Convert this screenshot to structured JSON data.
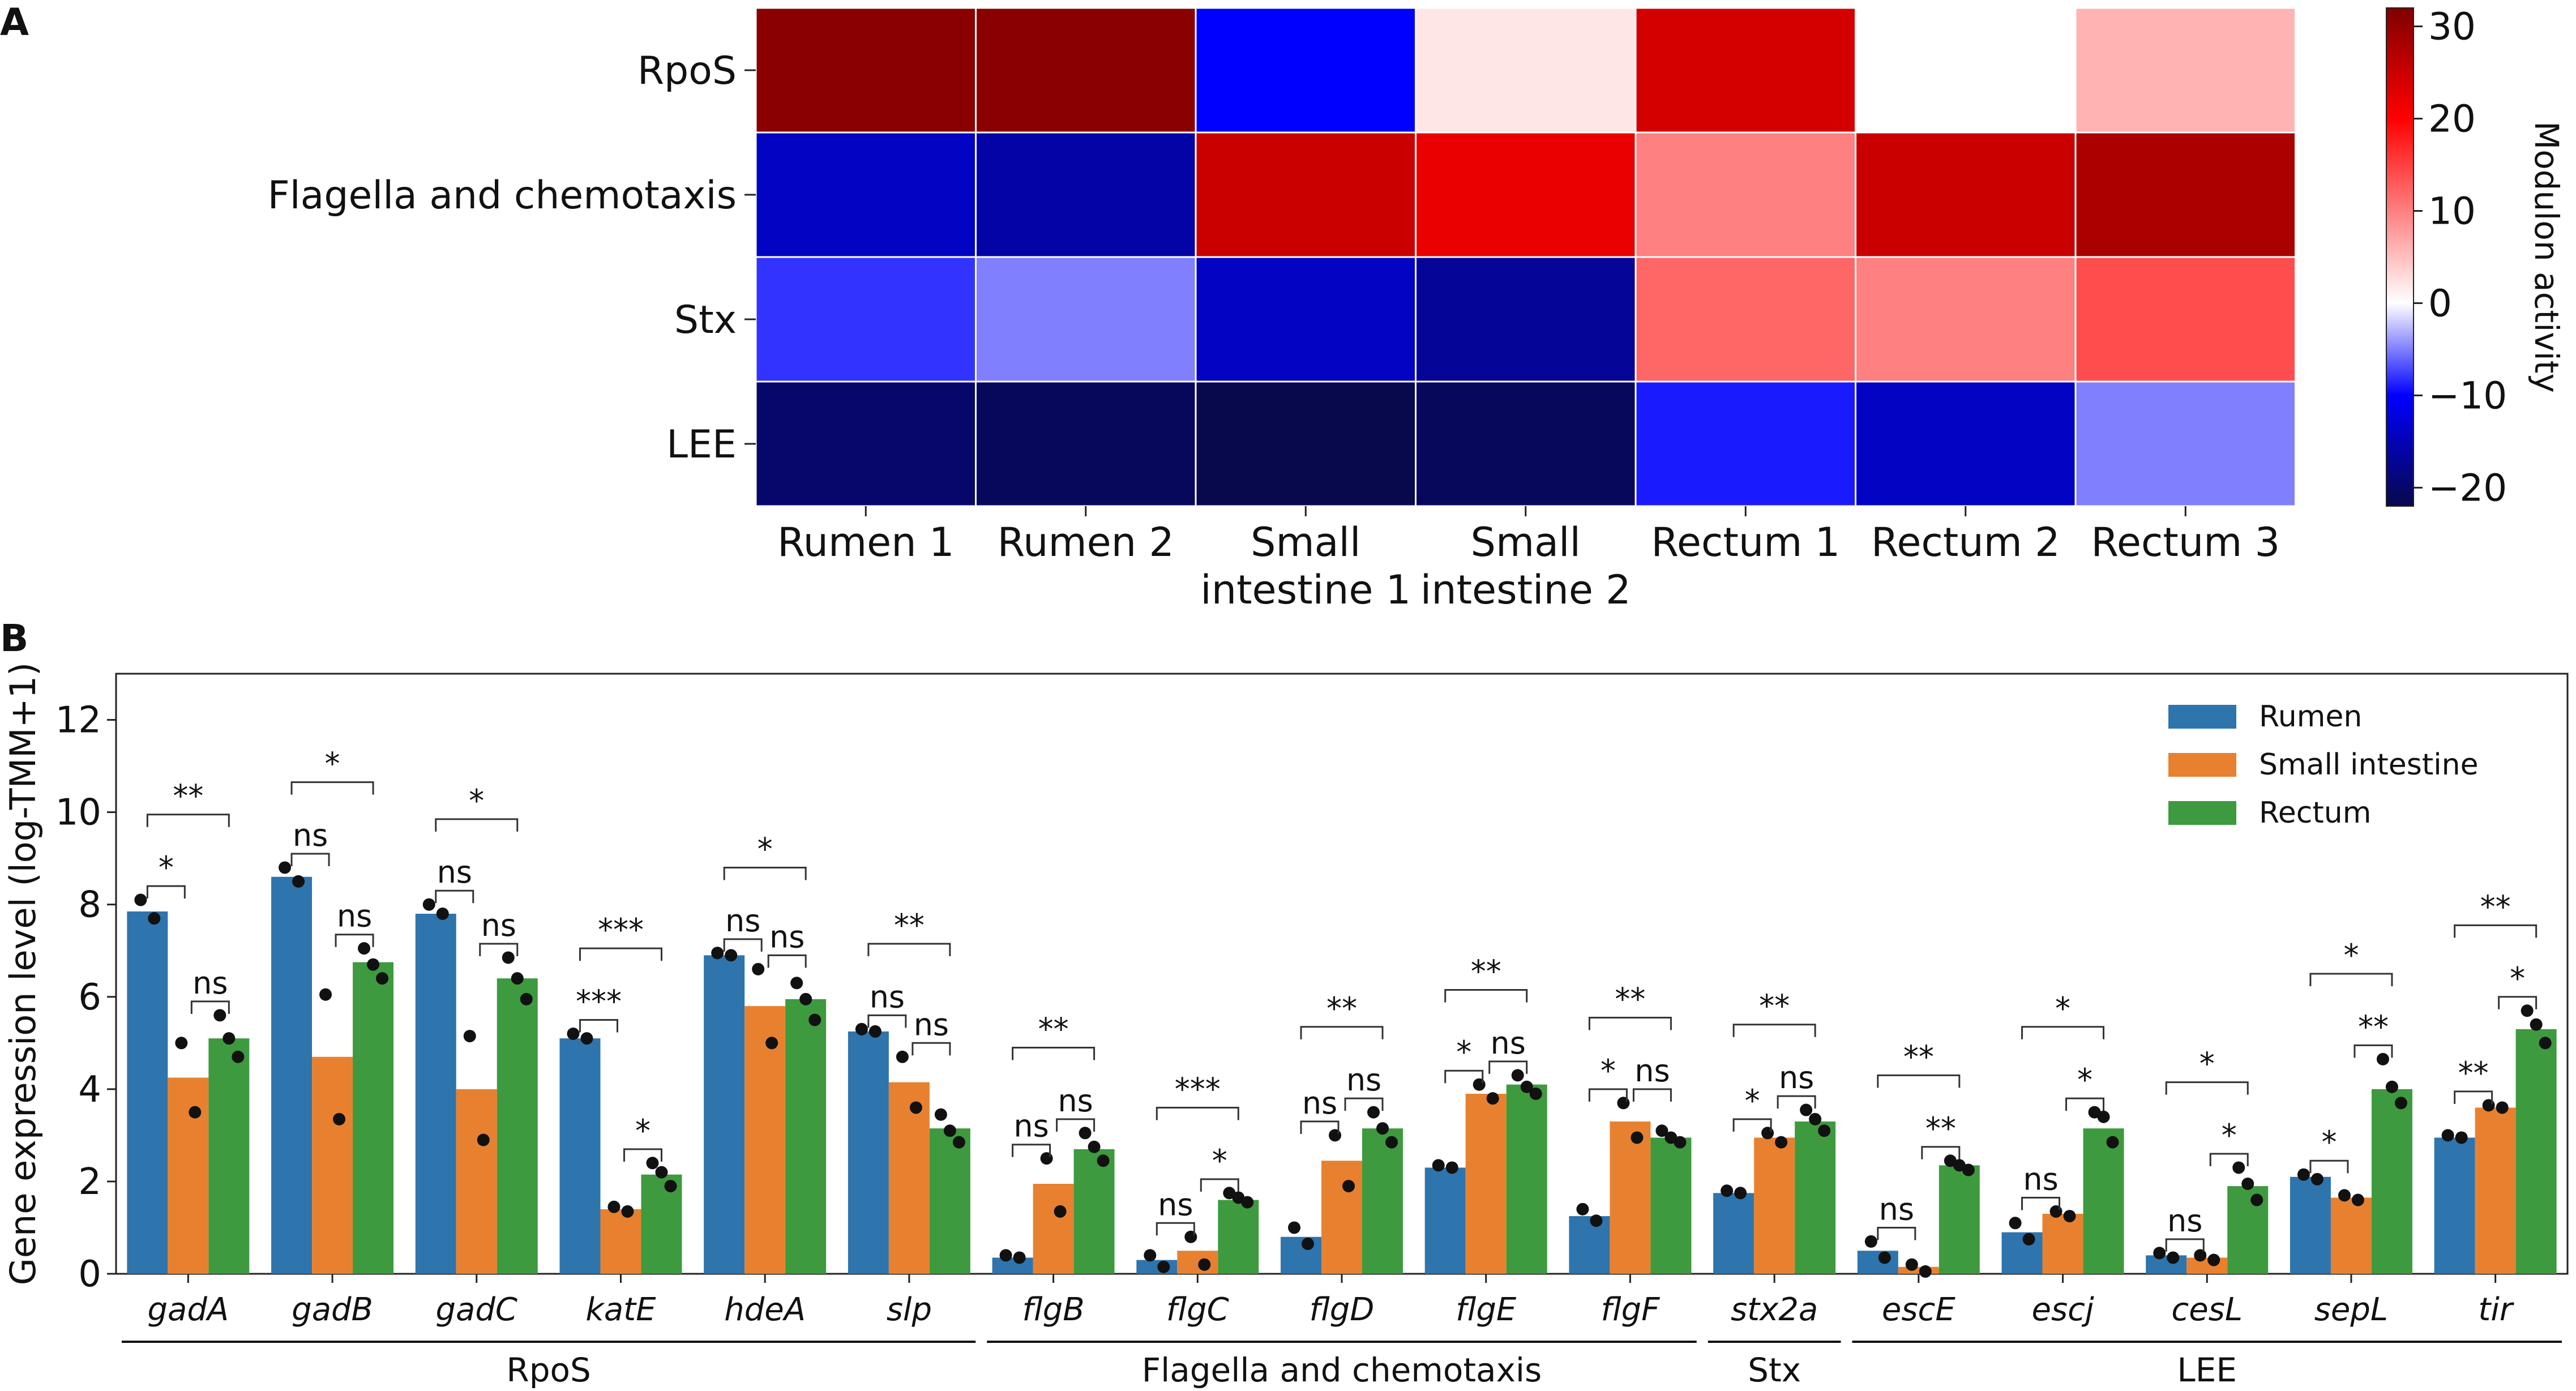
{
  "panel_a_label": "A",
  "panel_b_label": "B",
  "chart_data": [
    {
      "type": "heatmap",
      "panel": "A",
      "rows": [
        "RpoS",
        "Flagella and chemotaxis",
        "Stx",
        "LEE"
      ],
      "columns": [
        "Rumen 1",
        "Rumen 2",
        "Small intestine 1",
        "Small intestine 2",
        "Rectum 1",
        "Rectum 2",
        "Rectum 3"
      ],
      "column_labels": [
        [
          "Rumen 1"
        ],
        [
          "Rumen 2"
        ],
        [
          "Small",
          "intestine 1"
        ],
        [
          "Small",
          "intestine 2"
        ],
        [
          "Rectum 1"
        ],
        [
          "Rectum 2"
        ],
        [
          "Rectum 3"
        ]
      ],
      "values": [
        [
          31,
          31,
          -10,
          2,
          24,
          0,
          6
        ],
        [
          -14,
          -16,
          25,
          22,
          10,
          25,
          28
        ],
        [
          -8,
          -5,
          -14,
          -17,
          12,
          10,
          14
        ],
        [
          -20,
          -21,
          -22,
          -21,
          -9,
          -14,
          -5
        ]
      ],
      "colorbar": {
        "label": "Modulon activity",
        "vmin": -22,
        "vmax": 32,
        "ticks": [
          30,
          20,
          10,
          0,
          -10,
          -20
        ],
        "tick_labels": [
          "30",
          "20",
          "10",
          "0",
          "−10",
          "−20"
        ],
        "colors": [
          "#08084d",
          "#0000ff",
          "#ffffff",
          "#ff0000",
          "#7f0000"
        ]
      }
    },
    {
      "type": "bar",
      "panel": "B",
      "ylabel": "Gene expression level (log-TMM+1)",
      "ylim": [
        0,
        13
      ],
      "yticks": [
        0,
        2,
        4,
        6,
        8,
        10,
        12
      ],
      "categories": [
        "gadA",
        "gadB",
        "gadC",
        "katE",
        "hdeA",
        "slp",
        "flgB",
        "flgC",
        "flgD",
        "flgE",
        "flgF",
        "stx2a",
        "escE",
        "escj",
        "cesL",
        "sepL",
        "tir"
      ],
      "series": [
        {
          "name": "Rumen",
          "color": "#2e74ad",
          "values": [
            7.85,
            8.6,
            7.8,
            5.1,
            6.9,
            5.25,
            0.35,
            0.3,
            0.8,
            2.3,
            1.25,
            1.75,
            0.5,
            0.9,
            0.4,
            2.1,
            2.95
          ]
        },
        {
          "name": "Small intestine",
          "color": "#e8812f",
          "values": [
            4.25,
            4.7,
            4.0,
            1.4,
            5.8,
            4.15,
            1.95,
            0.5,
            2.45,
            3.9,
            3.3,
            2.95,
            0.15,
            1.3,
            0.35,
            1.65,
            3.6
          ]
        },
        {
          "name": "Rectum",
          "color": "#3e9a3e",
          "values": [
            5.1,
            6.75,
            6.4,
            2.15,
            5.95,
            3.15,
            2.7,
            1.6,
            3.15,
            4.1,
            2.95,
            3.3,
            2.35,
            3.15,
            1.9,
            4.0,
            5.3
          ]
        }
      ],
      "points": [
        [
          [
            8.1,
            7.7
          ],
          [
            8.8,
            8.5
          ],
          [
            8.0,
            7.8
          ],
          [
            5.2,
            5.1
          ],
          [
            6.95,
            6.9
          ],
          [
            5.3,
            5.25
          ],
          [
            0.4,
            0.35
          ],
          [
            0.4,
            0.15
          ],
          [
            1.0,
            0.65
          ],
          [
            2.35,
            2.3
          ],
          [
            1.4,
            1.15
          ],
          [
            1.8,
            1.75
          ],
          [
            0.7,
            0.35
          ],
          [
            1.1,
            0.75
          ],
          [
            0.45,
            0.35
          ],
          [
            2.15,
            2.05
          ],
          [
            3.0,
            2.95
          ]
        ],
        [
          [
            5.0,
            3.5
          ],
          [
            6.05,
            3.35
          ],
          [
            5.15,
            2.9
          ],
          [
            1.45,
            1.35
          ],
          [
            6.6,
            5.0
          ],
          [
            4.7,
            3.6
          ],
          [
            2.5,
            1.35
          ],
          [
            0.8,
            0.2
          ],
          [
            3.0,
            1.9
          ],
          [
            4.1,
            3.8
          ],
          [
            3.7,
            2.95
          ],
          [
            3.05,
            2.85
          ],
          [
            0.2,
            0.05
          ],
          [
            1.35,
            1.25
          ],
          [
            0.4,
            0.3
          ],
          [
            1.7,
            1.6
          ],
          [
            3.65,
            3.6
          ]
        ],
        [
          [
            5.6,
            5.1,
            4.7
          ],
          [
            7.05,
            6.7,
            6.4
          ],
          [
            6.85,
            6.4,
            5.95
          ],
          [
            2.4,
            2.2,
            1.9
          ],
          [
            6.3,
            5.95,
            5.5
          ],
          [
            3.45,
            3.1,
            2.85
          ],
          [
            3.05,
            2.75,
            2.45
          ],
          [
            1.75,
            1.65,
            1.55
          ],
          [
            3.5,
            3.15,
            2.85
          ],
          [
            4.3,
            4.05,
            3.9
          ],
          [
            3.1,
            2.95,
            2.85
          ],
          [
            3.55,
            3.35,
            3.1
          ],
          [
            2.45,
            2.35,
            2.25
          ],
          [
            3.5,
            3.4,
            2.85
          ],
          [
            2.3,
            1.95,
            1.6
          ],
          [
            4.65,
            4.05,
            3.7
          ],
          [
            5.7,
            5.4,
            5.0
          ]
        ]
      ],
      "significance": [
        [
          {
            "pair": [
              0,
              1
            ],
            "label": "*"
          },
          {
            "pair": [
              1,
              2
            ],
            "label": "ns"
          },
          {
            "pair": [
              0,
              2
            ],
            "label": "**"
          }
        ],
        [
          {
            "pair": [
              0,
              1
            ],
            "label": "ns"
          },
          {
            "pair": [
              1,
              2
            ],
            "label": "ns"
          },
          {
            "pair": [
              0,
              2
            ],
            "label": "*"
          }
        ],
        [
          {
            "pair": [
              0,
              1
            ],
            "label": "ns"
          },
          {
            "pair": [
              1,
              2
            ],
            "label": "ns"
          },
          {
            "pair": [
              0,
              2
            ],
            "label": "*"
          }
        ],
        [
          {
            "pair": [
              0,
              1
            ],
            "label": "***"
          },
          {
            "pair": [
              1,
              2
            ],
            "label": "*"
          },
          {
            "pair": [
              0,
              2
            ],
            "label": "***"
          }
        ],
        [
          {
            "pair": [
              0,
              1
            ],
            "label": "ns"
          },
          {
            "pair": [
              1,
              2
            ],
            "label": "ns"
          },
          {
            "pair": [
              0,
              2
            ],
            "label": "*"
          }
        ],
        [
          {
            "pair": [
              0,
              1
            ],
            "label": "ns"
          },
          {
            "pair": [
              1,
              2
            ],
            "label": "ns"
          },
          {
            "pair": [
              0,
              2
            ],
            "label": "**"
          }
        ],
        [
          {
            "pair": [
              0,
              1
            ],
            "label": "ns"
          },
          {
            "pair": [
              1,
              2
            ],
            "label": "ns"
          },
          {
            "pair": [
              0,
              2
            ],
            "label": "**"
          }
        ],
        [
          {
            "pair": [
              0,
              1
            ],
            "label": "ns"
          },
          {
            "pair": [
              1,
              2
            ],
            "label": "*"
          },
          {
            "pair": [
              0,
              2
            ],
            "label": "***"
          }
        ],
        [
          {
            "pair": [
              0,
              1
            ],
            "label": "ns"
          },
          {
            "pair": [
              1,
              2
            ],
            "label": "ns"
          },
          {
            "pair": [
              0,
              2
            ],
            "label": "**"
          }
        ],
        [
          {
            "pair": [
              0,
              1
            ],
            "label": "*"
          },
          {
            "pair": [
              1,
              2
            ],
            "label": "ns"
          },
          {
            "pair": [
              0,
              2
            ],
            "label": "**"
          }
        ],
        [
          {
            "pair": [
              0,
              1
            ],
            "label": "*"
          },
          {
            "pair": [
              1,
              2
            ],
            "label": "ns"
          },
          {
            "pair": [
              0,
              2
            ],
            "label": "**"
          }
        ],
        [
          {
            "pair": [
              0,
              1
            ],
            "label": "*"
          },
          {
            "pair": [
              1,
              2
            ],
            "label": "ns"
          },
          {
            "pair": [
              0,
              2
            ],
            "label": "**"
          }
        ],
        [
          {
            "pair": [
              0,
              1
            ],
            "label": "ns"
          },
          {
            "pair": [
              1,
              2
            ],
            "label": "**"
          },
          {
            "pair": [
              0,
              2
            ],
            "label": "**"
          }
        ],
        [
          {
            "pair": [
              0,
              1
            ],
            "label": "ns"
          },
          {
            "pair": [
              1,
              2
            ],
            "label": "*"
          },
          {
            "pair": [
              0,
              2
            ],
            "label": "*"
          }
        ],
        [
          {
            "pair": [
              0,
              1
            ],
            "label": "ns"
          },
          {
            "pair": [
              1,
              2
            ],
            "label": "*"
          },
          {
            "pair": [
              0,
              2
            ],
            "label": "*"
          }
        ],
        [
          {
            "pair": [
              0,
              1
            ],
            "label": "*"
          },
          {
            "pair": [
              1,
              2
            ],
            "label": "**"
          },
          {
            "pair": [
              0,
              2
            ],
            "label": "*"
          }
        ],
        [
          {
            "pair": [
              0,
              1
            ],
            "label": "**"
          },
          {
            "pair": [
              1,
              2
            ],
            "label": "*"
          },
          {
            "pair": [
              0,
              2
            ],
            "label": "**"
          }
        ]
      ],
      "gene_groups": [
        {
          "label": "RpoS",
          "first": 0,
          "last": 5
        },
        {
          "label": "Flagella and chemotaxis",
          "first": 6,
          "last": 10
        },
        {
          "label": "Stx",
          "first": 11,
          "last": 11
        },
        {
          "label": "LEE",
          "first": 12,
          "last": 16
        }
      ],
      "legend": {
        "position": "top-right",
        "entries": [
          "Rumen",
          "Small intestine",
          "Rectum"
        ]
      }
    }
  ]
}
